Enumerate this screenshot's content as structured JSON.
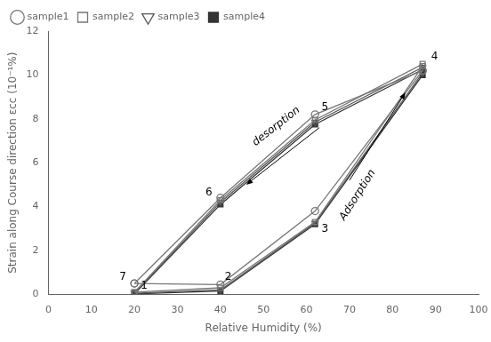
{
  "chart_data": {
    "type": "line",
    "xlabel": "Relative Humidity (%)",
    "ylabel": "Strain along Course direction εcc (10⁻¹%)",
    "xlim": [
      0,
      100
    ],
    "ylim": [
      0,
      12
    ],
    "xticks": [
      0,
      10,
      20,
      30,
      40,
      50,
      60,
      70,
      80,
      90,
      100
    ],
    "yticks": [
      0,
      2,
      4,
      6,
      8,
      10,
      12
    ],
    "grid": false,
    "legend": "upper left",
    "series": [
      {
        "name": "sample1",
        "color": "#777777",
        "marker": "circle-open",
        "adsorption": {
          "x": [
            20,
            40,
            62,
            87
          ],
          "values": [
            0.5,
            0.45,
            3.8,
            10.2
          ]
        },
        "desorption": {
          "x": [
            87,
            62,
            40,
            20
          ],
          "values": [
            10.2,
            8.2,
            4.4,
            0.5
          ]
        }
      },
      {
        "name": "sample2",
        "color": "#777777",
        "marker": "square-open",
        "adsorption": {
          "x": [
            20,
            40,
            62,
            87
          ],
          "values": [
            0.1,
            0.3,
            3.3,
            10.4
          ]
        },
        "desorption": {
          "x": [
            87,
            62,
            40,
            20
          ],
          "values": [
            10.5,
            7.95,
            4.3,
            0.1
          ]
        }
      },
      {
        "name": "sample3",
        "color": "#555555",
        "marker": "triangle-down-open",
        "adsorption": {
          "x": [
            20,
            40,
            62,
            87
          ],
          "values": [
            0.05,
            0.2,
            3.25,
            10.1
          ]
        },
        "desorption": {
          "x": [
            87,
            62,
            40,
            20
          ],
          "values": [
            10.35,
            7.85,
            4.2,
            0.05
          ]
        }
      },
      {
        "name": "sample4",
        "color": "#333333",
        "marker": "square",
        "adsorption": {
          "x": [
            20,
            40,
            62,
            87
          ],
          "values": [
            0.02,
            0.15,
            3.2,
            10.0
          ]
        },
        "desorption": {
          "x": [
            87,
            62,
            40,
            20
          ],
          "values": [
            10.25,
            7.75,
            4.1,
            0.02
          ]
        }
      }
    ],
    "annotations": [
      {
        "text": "7",
        "x": 16.5,
        "y": 0.55
      },
      {
        "text": "1",
        "x": 21.5,
        "y": 0.15
      },
      {
        "text": "2",
        "x": 41,
        "y": 0.55
      },
      {
        "text": "6",
        "x": 36.5,
        "y": 4.4
      },
      {
        "text": "5",
        "x": 63.5,
        "y": 8.3
      },
      {
        "text": "3",
        "x": 63.5,
        "y": 2.75
      },
      {
        "text": "4",
        "x": 89,
        "y": 10.6
      }
    ],
    "arrows": [
      {
        "text": "desorption",
        "from": [
          63,
          7.6
        ],
        "to": [
          46,
          5.0
        ],
        "x": 54,
        "y": 7.4
      },
      {
        "text": "Adsorption",
        "from": [
          70,
          5.2
        ],
        "to": [
          83,
          9.2
        ],
        "x": 70.5,
        "y": 4.7
      }
    ]
  }
}
